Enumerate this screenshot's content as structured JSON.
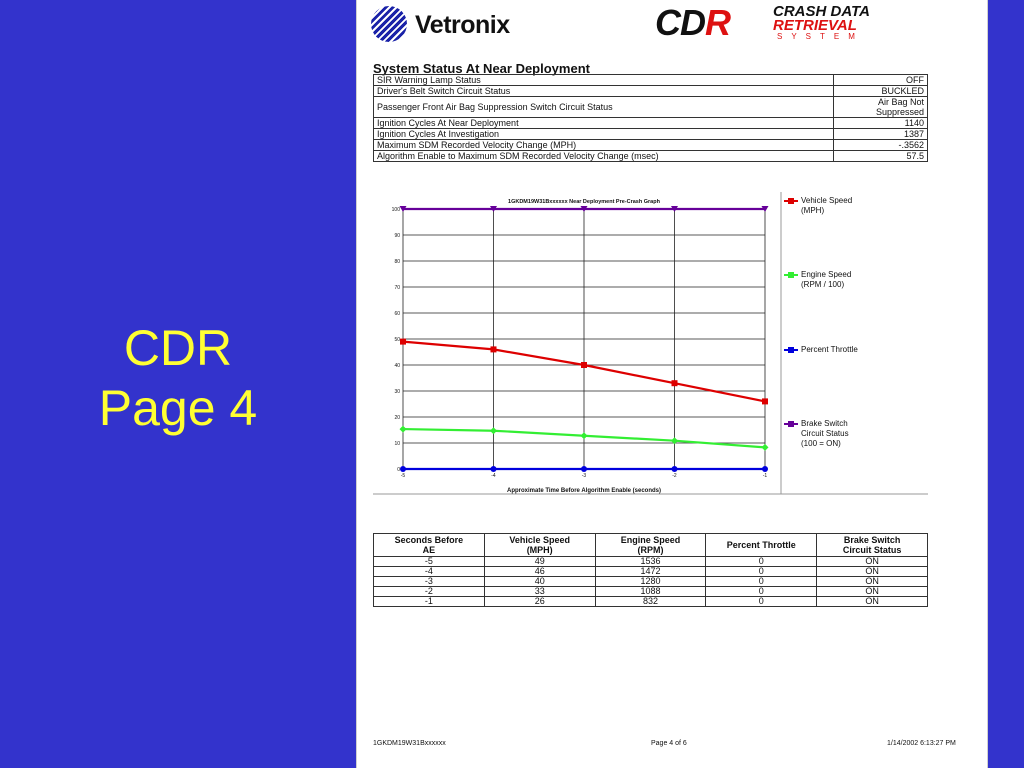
{
  "slide": {
    "title_line1": "CDR",
    "title_line2": "Page 4"
  },
  "colors": {
    "background": "#3333cc",
    "title": "#ffff33",
    "red": "#dd0000",
    "green": "#33ee33",
    "blue": "#0000dd",
    "purple": "#660099"
  },
  "header": {
    "vetronix_logo": "Vetronix",
    "cdr_logo": {
      "mark": "CDR",
      "line1": "CRASH DATA",
      "line2": "RETRIEVAL",
      "line3": "SYSTEM"
    }
  },
  "status": {
    "heading": "System Status At Near Deployment",
    "rows": [
      {
        "label": "SIR Warning Lamp Status",
        "value": "OFF"
      },
      {
        "label": "Driver's Belt Switch Circuit Status",
        "value": "BUCKLED"
      },
      {
        "label": "Passenger Front Air Bag Suppression Switch Circuit Status",
        "value": "Air Bag Not Suppressed"
      },
      {
        "label": "Ignition Cycles At Near Deployment",
        "value": "1140"
      },
      {
        "label": "Ignition Cycles At Investigation",
        "value": "1387"
      },
      {
        "label": "Maximum SDM Recorded Velocity Change (MPH)",
        "value": "-.3562"
      },
      {
        "label": "Algorithm Enable to Maximum SDM Recorded Velocity Change (msec)",
        "value": "57.5"
      }
    ]
  },
  "chart_data": {
    "type": "line",
    "title": "1GKDM19W31Bxxxxxx Near Deployment Pre-Crash Graph",
    "xlabel": "Approximate Time Before Algorithm Enable (seconds)",
    "ylabel": "",
    "x": [
      -5,
      -4,
      -3,
      -2,
      -1
    ],
    "x_tick_labels": [
      "-5",
      "-4",
      "-3",
      "-2",
      "-1"
    ],
    "y_ticks": [
      0,
      10,
      20,
      30,
      40,
      50,
      60,
      70,
      80,
      90,
      100
    ],
    "ylim": [
      0,
      100
    ],
    "grid": true,
    "legend_position": "right",
    "series": [
      {
        "name": "Vehicle Speed (MPH)",
        "label_lines": [
          "Vehicle Speed",
          "(MPH)"
        ],
        "color": "#dd0000",
        "marker": "square",
        "values": [
          49,
          46,
          40,
          33,
          26
        ]
      },
      {
        "name": "Engine Speed (RPM / 100)",
        "label_lines": [
          "Engine Speed",
          "(RPM / 100)"
        ],
        "color": "#33ee33",
        "marker": "diamond",
        "values": [
          15.36,
          14.72,
          12.8,
          10.88,
          8.32
        ]
      },
      {
        "name": "Percent Throttle",
        "label_lines": [
          "Percent Throttle"
        ],
        "color": "#0000dd",
        "marker": "circle",
        "values": [
          0,
          0,
          0,
          0,
          0
        ]
      },
      {
        "name": "Brake Switch Circuit Status (100 = ON)",
        "label_lines": [
          "Brake Switch",
          "Circuit Status",
          "(100 = ON)"
        ],
        "color": "#660099",
        "marker": "triangle",
        "values": [
          100,
          100,
          100,
          100,
          100
        ]
      }
    ]
  },
  "data_table": {
    "headers": [
      [
        "Seconds Before",
        "AE"
      ],
      [
        "Vehicle Speed",
        "(MPH)"
      ],
      [
        "Engine Speed",
        "(RPM)"
      ],
      [
        "Percent Throttle"
      ],
      [
        "Brake Switch",
        "Circuit Status"
      ]
    ],
    "rows": [
      [
        "-5",
        "49",
        "1536",
        "0",
        "ON"
      ],
      [
        "-4",
        "46",
        "1472",
        "0",
        "ON"
      ],
      [
        "-3",
        "40",
        "1280",
        "0",
        "ON"
      ],
      [
        "-2",
        "33",
        "1088",
        "0",
        "ON"
      ],
      [
        "-1",
        "26",
        "832",
        "0",
        "ON"
      ]
    ]
  },
  "footer": {
    "left": "1GKDM19W31Bxxxxxx",
    "center": "Page 4 of 6",
    "right": "1/14/2002 6:13:27 PM"
  }
}
